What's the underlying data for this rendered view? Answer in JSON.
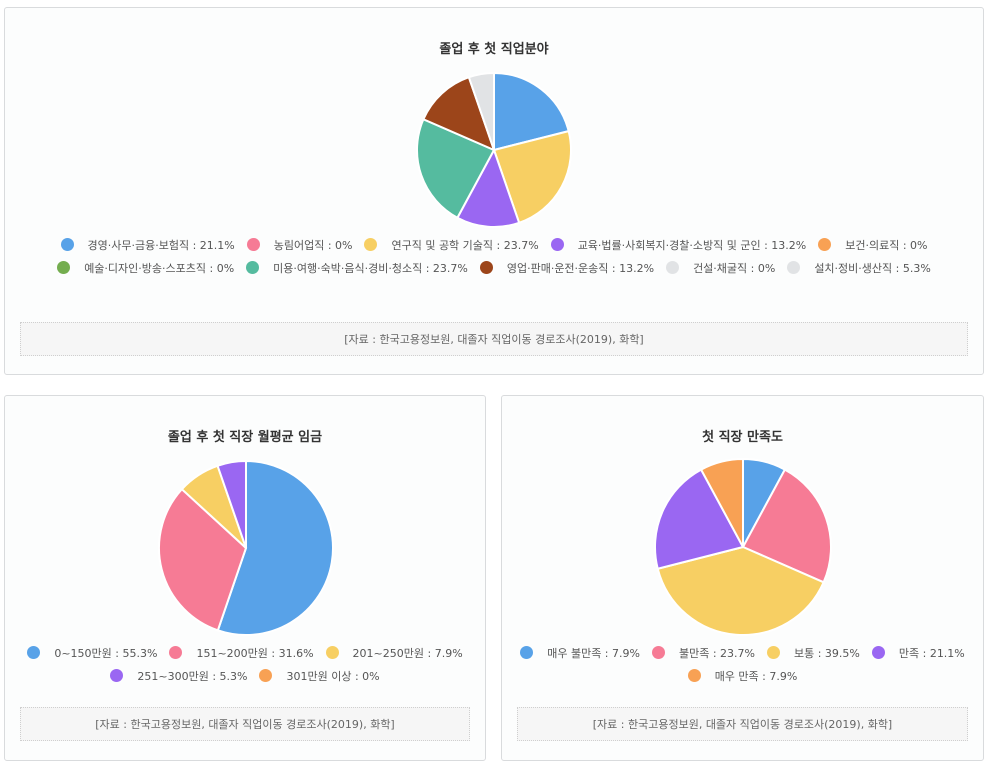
{
  "chart_data": [
    {
      "type": "pie",
      "title": "졸업 후 첫 직업분야",
      "categories": [
        "경영·사무·금융·보험직",
        "농림어업직",
        "연구직 및 공학 기술직",
        "교육·법률·사회복지·경찰·소방직 및 군인",
        "보건·의료직",
        "예술·디자인·방송·스포츠직",
        "미용·여행·숙박·음식·경비·청소직",
        "영업·판매·운전·운송직",
        "건설·채굴직",
        "설치·정비·생산직"
      ],
      "values": [
        21.1,
        0,
        23.7,
        13.2,
        0,
        0,
        23.7,
        13.2,
        0,
        5.3
      ],
      "legend_labels": [
        "경영·사무·금융·보험직 : 21.1%",
        "농림어업직 : 0%",
        "연구직 및 공학 기술직 : 23.7%",
        "교육·법률·사회복지·경찰·소방직 및 군인 : 13.2%",
        "보건·의료직 : 0%",
        "예술·디자인·방송·스포츠직 : 0%",
        "미용·여행·숙박·음식·경비·청소직 : 23.7%",
        "영업·판매·운전·운송직 : 13.2%",
        "건설·채굴직 : 0%",
        "설치·정비·생산직 : 5.3%"
      ],
      "colors": [
        "#58a2e8",
        "#f67b95",
        "#f7cf63",
        "#9a67f2",
        "#f8a154",
        "#74ad4f",
        "#55bb9f",
        "#9c451a",
        "#e1e3e5",
        "#e1e3e5"
      ],
      "source": "[자료 : 한국고용정보원, 대졸자 직업이동 경로조사(2019), 화학]"
    },
    {
      "type": "pie",
      "title": "졸업 후 첫 직장 월평균 임금",
      "categories": [
        "0~150만원",
        "151~200만원",
        "201~250만원",
        "251~300만원",
        "301만원 이상"
      ],
      "values": [
        55.3,
        31.6,
        7.9,
        5.3,
        0
      ],
      "legend_labels": [
        "0~150만원 : 55.3%",
        "151~200만원 : 31.6%",
        "201~250만원 : 7.9%",
        "251~300만원 : 5.3%",
        "301만원 이상 : 0%"
      ],
      "colors": [
        "#58a2e8",
        "#f67b95",
        "#f7cf63",
        "#9a67f2",
        "#f8a154"
      ],
      "source": "[자료 : 한국고용정보원, 대졸자 직업이동 경로조사(2019), 화학]"
    },
    {
      "type": "pie",
      "title": "첫 직장 만족도",
      "categories": [
        "매우 불만족",
        "불만족",
        "보통",
        "만족",
        "매우 만족"
      ],
      "values": [
        7.9,
        23.7,
        39.5,
        21.1,
        7.9
      ],
      "legend_labels": [
        "매우 불만족 : 7.9%",
        "불만족 : 23.7%",
        "보통 : 39.5%",
        "만족 : 21.1%",
        "매우 만족 : 7.9%"
      ],
      "colors": [
        "#58a2e8",
        "#f67b95",
        "#f7cf63",
        "#9a67f2",
        "#f8a154"
      ],
      "source": "[자료 : 한국고용정보원, 대졸자 직업이동 경로조사(2019), 화학]"
    }
  ]
}
